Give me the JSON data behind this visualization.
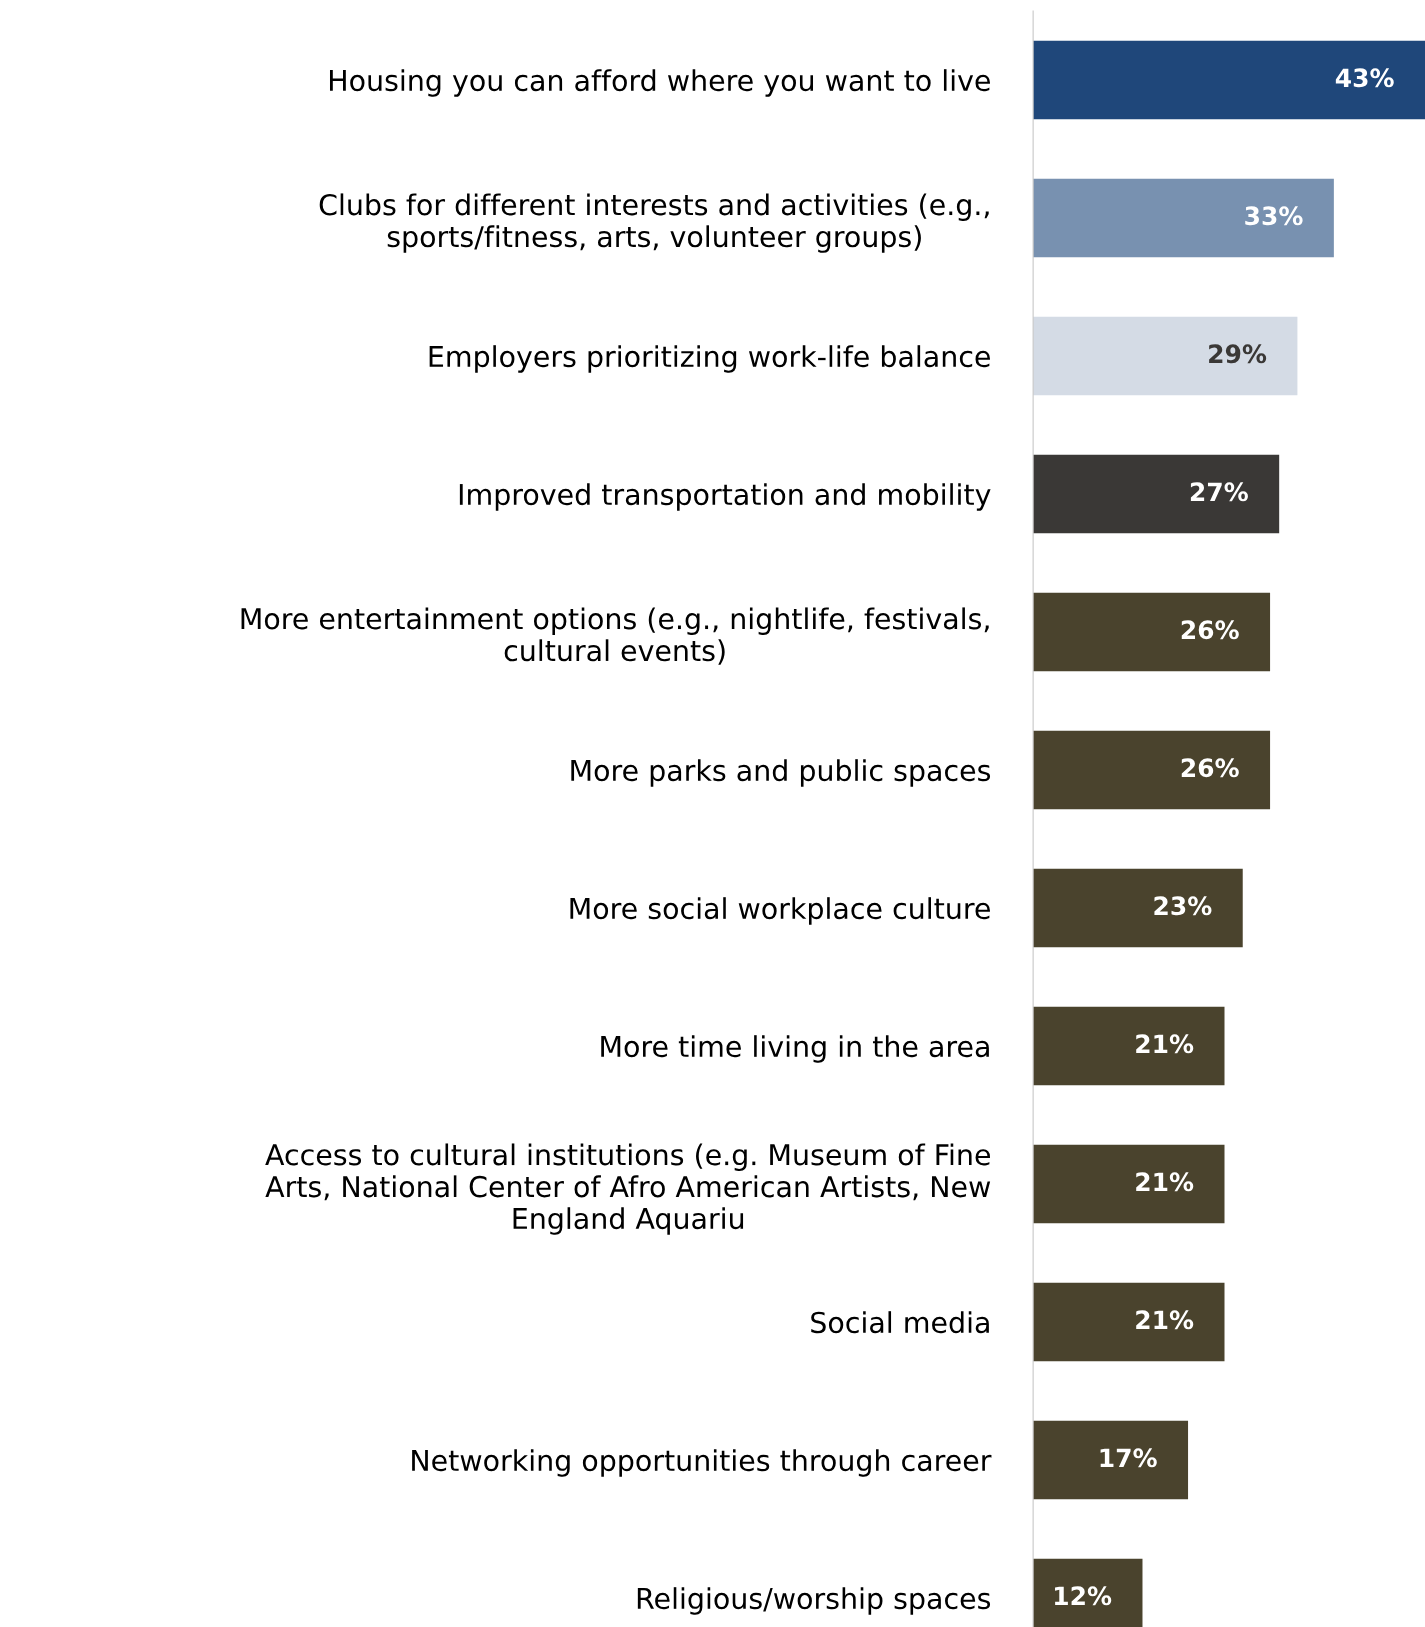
{
  "chart_data": {
    "type": "bar",
    "orientation": "horizontal",
    "categories": [
      "Housing you can afford where you want to live",
      "Clubs for different interests and activities (e.g.,\nsports/fitness, arts, volunteer groups)",
      "Employers prioritizing work-life balance",
      "Improved transportation and mobility",
      "More entertainment options (e.g., nightlife, festivals,\ncultural events)",
      "More parks and public spaces",
      "More social workplace culture",
      "More time living in the area",
      "Access to cultural institutions (e.g. Museum of Fine\nArts, National Center of Afro American Artists, New\nEngland Aquariu",
      "Social media",
      "Networking opportunities through career",
      "Religious/worship spaces"
    ],
    "values": [
      43,
      33,
      29,
      27,
      26,
      26,
      23,
      21,
      21,
      21,
      17,
      12
    ],
    "value_labels": [
      "43%",
      "33%",
      "29%",
      "27%",
      "26%",
      "26%",
      "23%",
      "21%",
      "21%",
      "21%",
      "17%",
      "12%"
    ],
    "colors": [
      "#1f477a",
      "#7891b0",
      "#d4dbe5",
      "#3a3836",
      "#4a432d",
      "#4a432d",
      "#4a432d",
      "#4a432d",
      "#4a432d",
      "#4a432d",
      "#4a432d",
      "#4a432d"
    ],
    "xlim": [
      0,
      43
    ]
  }
}
